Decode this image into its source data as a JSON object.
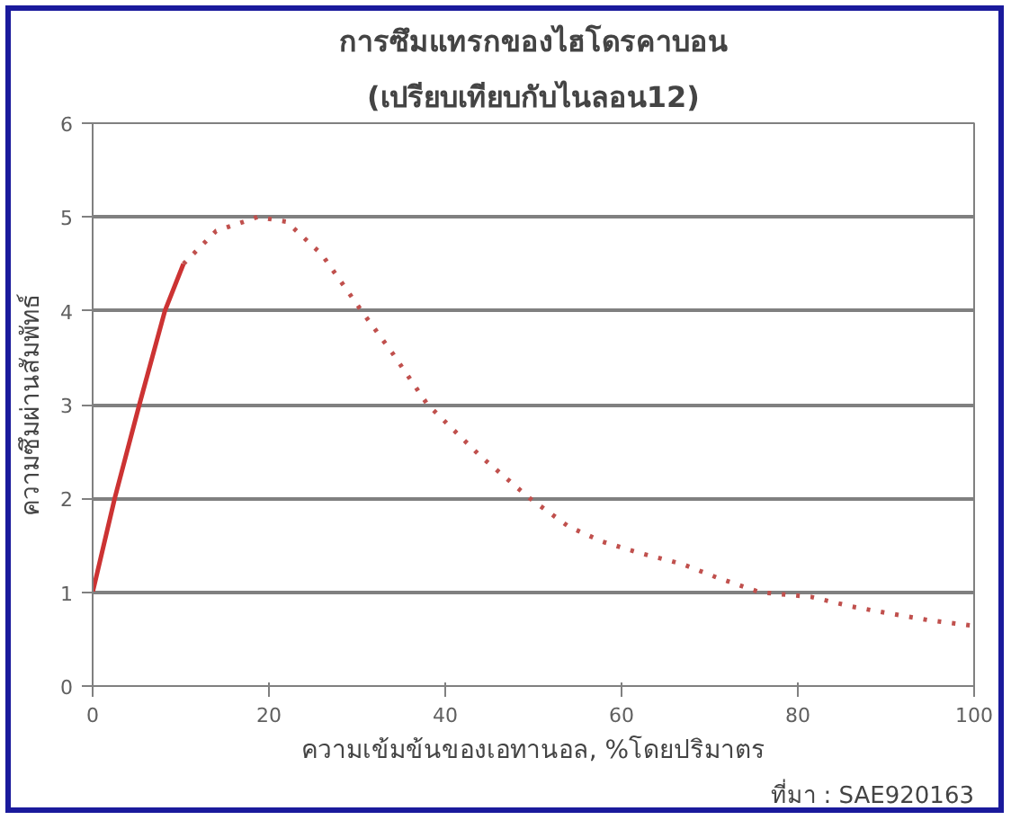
{
  "chart_data": {
    "type": "line",
    "title": "การซึมแทรกของไฮโดรคาบอน",
    "subtitle": "(เปรียบเทียบกับไนลอน12)",
    "xlabel": "ความเข้มข้นของเอทานอล, %โดยปริมาตร",
    "ylabel": "ความซึมผ่านสัมพัทธ์",
    "annotations": [
      "ที่มา : SAE920163"
    ],
    "xlim": [
      0,
      100
    ],
    "xticks": [
      0,
      20,
      40,
      60,
      80,
      100
    ],
    "ylim": [
      0,
      6
    ],
    "yticks": [
      0,
      1,
      2,
      3,
      4,
      5,
      6
    ],
    "grid": "y",
    "marker": "none",
    "series": [
      {
        "color": "#cc3333",
        "line_style": "solid",
        "x": [
          0,
          2.5,
          5.3,
          8.2,
          10.3
        ],
        "values": [
          1,
          2,
          3,
          4,
          4.5
        ]
      },
      {
        "color": "#c0504d",
        "line_style": "dotted",
        "x": [
          10.3,
          14,
          18.7,
          22,
          26,
          30.5,
          34,
          38,
          44,
          49.6,
          54,
          57.8,
          62,
          66.9,
          71,
          75.7,
          81.5,
          86,
          90,
          95,
          100
        ],
        "values": [
          4.5,
          4.85,
          5,
          4.95,
          4.6,
          4,
          3.55,
          3,
          2.45,
          2,
          1.7,
          1.54,
          1.42,
          1.3,
          1.15,
          1,
          0.95,
          0.85,
          0.78,
          0.7,
          0.64
        ]
      }
    ]
  }
}
